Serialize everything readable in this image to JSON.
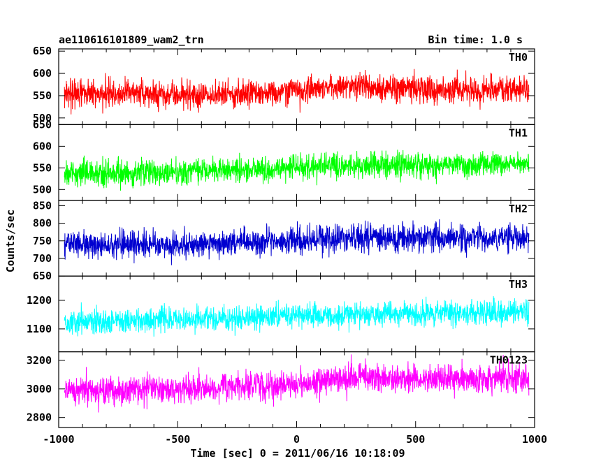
{
  "header": {
    "title": "ae110616101809_wam2_trn",
    "bin_time": "Bin time: 1.0 s"
  },
  "chart_data": {
    "type": "line",
    "xlabel": "Time [sec] 0 = 2011/06/16 10:18:09",
    "ylabel": "Counts/sec",
    "xlim": [
      -1000,
      1000
    ],
    "x_ticks": [
      -1000,
      -500,
      0,
      500,
      1000
    ],
    "x_range": [
      -976,
      976
    ],
    "bin_time_s": 1.0,
    "panels": [
      {
        "name": "TH0",
        "color": "#ff0000",
        "ylim": [
          485,
          655
        ],
        "y_ticks": [
          500,
          550,
          600,
          650
        ],
        "profile": [
          {
            "x": -976,
            "mean": 555
          },
          {
            "x": -300,
            "mean": 553
          },
          {
            "x": 0,
            "mean": 560
          },
          {
            "x": 200,
            "mean": 575
          },
          {
            "x": 500,
            "mean": 563
          },
          {
            "x": 976,
            "mean": 563
          }
        ],
        "noise_sd": 21
      },
      {
        "name": "TH1",
        "color": "#00ff00",
        "ylim": [
          475,
          650
        ],
        "y_ticks": [
          500,
          550,
          600,
          650
        ],
        "profile": [
          {
            "x": -976,
            "mean": 537
          },
          {
            "x": -500,
            "mean": 540
          },
          {
            "x": 0,
            "mean": 552
          },
          {
            "x": 500,
            "mean": 556
          },
          {
            "x": 976,
            "mean": 560
          }
        ],
        "noise_sd": 20
      },
      {
        "name": "TH2",
        "color": "#0000d0",
        "ylim": [
          650,
          865
        ],
        "y_ticks": [
          650,
          700,
          750,
          800,
          850
        ],
        "profile": [
          {
            "x": -976,
            "mean": 740
          },
          {
            "x": -500,
            "mean": 737
          },
          {
            "x": 0,
            "mean": 750
          },
          {
            "x": 200,
            "mean": 762
          },
          {
            "x": 500,
            "mean": 757
          },
          {
            "x": 976,
            "mean": 760
          }
        ],
        "noise_sd": 27
      },
      {
        "name": "TH3",
        "color": "#00ffff",
        "ylim": [
          1020,
          1285
        ],
        "y_ticks": [
          1100,
          1200
        ],
        "profile": [
          {
            "x": -976,
            "mean": 1125
          },
          {
            "x": -500,
            "mean": 1132
          },
          {
            "x": 0,
            "mean": 1145
          },
          {
            "x": 500,
            "mean": 1153
          },
          {
            "x": 976,
            "mean": 1158
          }
        ],
        "noise_sd": 30
      },
      {
        "name": "TH0123",
        "color": "#ff00ff",
        "ylim": [
          2730,
          3260
        ],
        "y_ticks": [
          2800,
          3000,
          3200
        ],
        "profile": [
          {
            "x": -976,
            "mean": 2990
          },
          {
            "x": -500,
            "mean": 3000
          },
          {
            "x": 0,
            "mean": 3030
          },
          {
            "x": 200,
            "mean": 3080
          },
          {
            "x": 500,
            "mean": 3070
          },
          {
            "x": 976,
            "mean": 3075
          }
        ],
        "noise_sd": 70
      }
    ]
  }
}
